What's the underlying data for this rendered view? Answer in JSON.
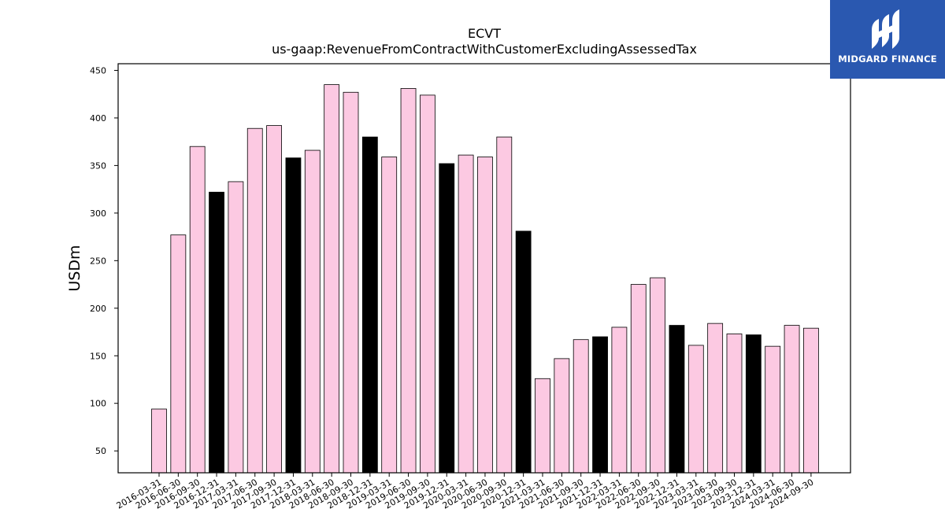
{
  "chart_data": {
    "type": "bar",
    "title": "ECVT",
    "subtitle": "us-gaap:RevenueFromContractWithCustomerExcludingAssessedTax",
    "xlabel": "",
    "ylabel": "USDm",
    "ylim": [
      27,
      457
    ],
    "yticks": [
      50,
      100,
      150,
      200,
      250,
      300,
      350,
      400,
      450
    ],
    "grid": false,
    "colors": {
      "quarter": "#fcc9e2",
      "year_end": "#000000",
      "edge": "#000000"
    },
    "categories": [
      "2016-03-31",
      "2016-06-30",
      "2016-09-30",
      "2016-12-31",
      "2017-03-31",
      "2017-06-30",
      "2017-09-30",
      "2017-12-31",
      "2018-03-31",
      "2018-06-30",
      "2018-09-30",
      "2018-12-31",
      "2019-03-31",
      "2019-06-30",
      "2019-09-30",
      "2019-12-31",
      "2020-03-31",
      "2020-06-30",
      "2020-09-30",
      "2020-12-31",
      "2021-03-31",
      "2021-06-30",
      "2021-09-30",
      "2021-12-31",
      "2022-03-31",
      "2022-06-30",
      "2022-09-30",
      "2022-12-31",
      "2023-03-31",
      "2023-06-30",
      "2023-09-30",
      "2023-12-31",
      "2024-03-31",
      "2024-06-30",
      "2024-09-30"
    ],
    "values": [
      94,
      277,
      370,
      322,
      333,
      389,
      392,
      358,
      366,
      435,
      427,
      380,
      359,
      431,
      424,
      352,
      361,
      359,
      380,
      281,
      126,
      147,
      167,
      170,
      180,
      225,
      232,
      182,
      161,
      184,
      173,
      172,
      160,
      182,
      179
    ]
  },
  "logo": {
    "text": "MIDGARD FINANCE",
    "icon": "midgard-logo-icon"
  }
}
